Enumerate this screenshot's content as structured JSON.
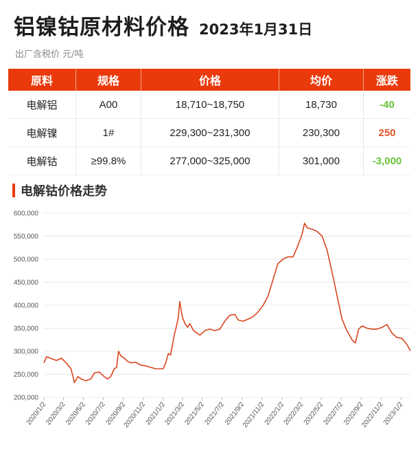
{
  "header": {
    "title": "铝镍钴原材料价格",
    "date": "2023年1月31日",
    "subtitle": "出厂含税价 元/吨"
  },
  "table": {
    "columns": [
      "原料",
      "规格",
      "价格",
      "均价",
      "涨跌"
    ],
    "rows": [
      {
        "material": "电解铝",
        "spec": "A00",
        "price": "18,710~18,750",
        "avg": "18,730",
        "change": "-40",
        "change_color": "#69c23a"
      },
      {
        "material": "电解镍",
        "spec": "1#",
        "price": "229,300~231,300",
        "avg": "230,300",
        "change": "250",
        "change_color": "#e0542a"
      },
      {
        "material": "电解钴",
        "spec": "≥99.8%",
        "price": "277,000~325,000",
        "avg": "301,000",
        "change": "-3,000",
        "change_color": "#69c23a"
      }
    ]
  },
  "section": {
    "title": "电解钴价格走势"
  },
  "colors": {
    "accent": "#ea3a0b",
    "line": "#d9441c",
    "grid": "#e8e8e8"
  },
  "chart_data": {
    "type": "line",
    "title": "电解钴价格走势",
    "ylim": [
      200000,
      600000
    ],
    "y_ticks": [
      "200,000",
      "250,000",
      "300,000",
      "350,000",
      "400,000",
      "450,000",
      "500,000",
      "550,000",
      "600,000"
    ],
    "x_ticks": [
      "2020/1/2",
      "2020/3/2",
      "2020/5/2",
      "2020/7/2",
      "2020/9/2",
      "2020/11/2",
      "2021/1/2",
      "2021/3/2",
      "2021/5/2",
      "2021/7/2",
      "2021/9/2",
      "2021/11/2",
      "2022/1/2",
      "2022/3/2",
      "2022/5/2",
      "2022/7/2",
      "2022/9/2",
      "2022/11/2",
      "2023/1/2"
    ],
    "grid": true,
    "series": [
      {
        "values": [
          [
            "2020/1/2",
            275000
          ],
          [
            "2020/1/10",
            288000
          ],
          [
            "2020/1/25",
            284000
          ],
          [
            "2020/2/10",
            280000
          ],
          [
            "2020/2/25",
            285000
          ],
          [
            "2020/3/10",
            275000
          ],
          [
            "2020/3/25",
            262000
          ],
          [
            "2020/4/5",
            232000
          ],
          [
            "2020/4/15",
            245000
          ],
          [
            "2020/4/25",
            240000
          ],
          [
            "2020/5/10",
            236000
          ],
          [
            "2020/5/25",
            240000
          ],
          [
            "2020/6/5",
            253000
          ],
          [
            "2020/6/20",
            255000
          ],
          [
            "2020/7/5",
            245000
          ],
          [
            "2020/7/15",
            240000
          ],
          [
            "2020/7/25",
            245000
          ],
          [
            "2020/8/5",
            262000
          ],
          [
            "2020/8/12",
            265000
          ],
          [
            "2020/8/18",
            300000
          ],
          [
            "2020/8/25",
            290000
          ],
          [
            "2020/9/5",
            285000
          ],
          [
            "2020/9/15",
            278000
          ],
          [
            "2020/9/25",
            275000
          ],
          [
            "2020/10/10",
            276000
          ],
          [
            "2020/10/25",
            270000
          ],
          [
            "2020/11/10",
            268000
          ],
          [
            "2020/11/25",
            265000
          ],
          [
            "2020/12/10",
            262000
          ],
          [
            "2020/12/25",
            262000
          ],
          [
            "2021/1/2",
            262000
          ],
          [
            "2021/1/10",
            275000
          ],
          [
            "2021/1/18",
            295000
          ],
          [
            "2021/1/25",
            292000
          ],
          [
            "2021/2/5",
            335000
          ],
          [
            "2021/2/12",
            355000
          ],
          [
            "2021/2/18",
            375000
          ],
          [
            "2021/2/22",
            408000
          ],
          [
            "2021/3/2",
            375000
          ],
          [
            "2021/3/10",
            360000
          ],
          [
            "2021/3/18",
            352000
          ],
          [
            "2021/3/25",
            360000
          ],
          [
            "2021/4/5",
            345000
          ],
          [
            "2021/4/15",
            340000
          ],
          [
            "2021/4/25",
            335000
          ],
          [
            "2021/5/10",
            345000
          ],
          [
            "2021/5/25",
            348000
          ],
          [
            "2021/6/10",
            345000
          ],
          [
            "2021/6/25",
            348000
          ],
          [
            "2021/7/10",
            365000
          ],
          [
            "2021/7/25",
            378000
          ],
          [
            "2021/8/10",
            380000
          ],
          [
            "2021/8/20",
            368000
          ],
          [
            "2021/9/5",
            365000
          ],
          [
            "2021/9/20",
            370000
          ],
          [
            "2021/10/5",
            375000
          ],
          [
            "2021/10/20",
            385000
          ],
          [
            "2021/11/5",
            400000
          ],
          [
            "2021/11/20",
            420000
          ],
          [
            "2021/12/5",
            455000
          ],
          [
            "2021/12/20",
            490000
          ],
          [
            "2022/1/5",
            500000
          ],
          [
            "2022/1/20",
            505000
          ],
          [
            "2022/2/5",
            505000
          ],
          [
            "2022/2/20",
            530000
          ],
          [
            "2022/3/5",
            555000
          ],
          [
            "2022/3/12",
            578000
          ],
          [
            "2022/3/20",
            568000
          ],
          [
            "2022/4/5",
            565000
          ],
          [
            "2022/4/20",
            560000
          ],
          [
            "2022/5/5",
            550000
          ],
          [
            "2022/5/20",
            520000
          ],
          [
            "2022/6/5",
            470000
          ],
          [
            "2022/6/20",
            420000
          ],
          [
            "2022/7/5",
            370000
          ],
          [
            "2022/7/20",
            345000
          ],
          [
            "2022/8/5",
            325000
          ],
          [
            "2022/8/15",
            318000
          ],
          [
            "2022/8/25",
            348000
          ],
          [
            "2022/9/5",
            355000
          ],
          [
            "2022/9/20",
            350000
          ],
          [
            "2022/10/5",
            348000
          ],
          [
            "2022/10/20",
            348000
          ],
          [
            "2022/11/5",
            352000
          ],
          [
            "2022/11/20",
            358000
          ],
          [
            "2022/12/5",
            340000
          ],
          [
            "2022/12/20",
            330000
          ],
          [
            "2023/1/5",
            328000
          ],
          [
            "2023/1/20",
            315000
          ],
          [
            "2023/1/31",
            301000
          ]
        ]
      }
    ]
  }
}
